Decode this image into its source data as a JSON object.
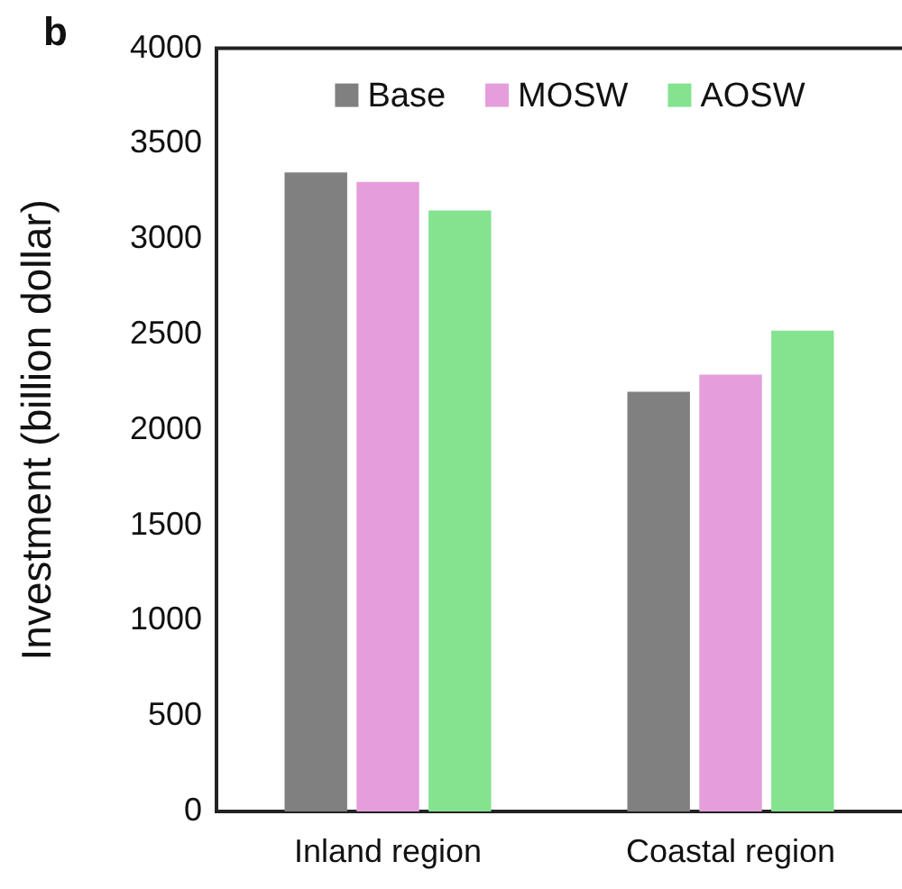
{
  "chart_data": {
    "type": "bar",
    "ylabel": "Investment (billion dollar)",
    "annotations": [
      "b"
    ],
    "categories": [
      "Inland region",
      "Coastal region"
    ],
    "series": [
      {
        "name": "Base",
        "color": "#808080",
        "values": [
          3350,
          2200
        ]
      },
      {
        "name": "MOSW",
        "color": "#e59edb",
        "values": [
          3300,
          2290
        ]
      },
      {
        "name": "AOSW",
        "color": "#85e28f",
        "values": [
          3150,
          2520
        ]
      }
    ],
    "ylim": [
      0,
      4000
    ],
    "yticks": [
      0,
      500,
      1000,
      1500,
      2000,
      2500,
      3000,
      3500,
      4000
    ],
    "grid": false,
    "legend": "top"
  }
}
